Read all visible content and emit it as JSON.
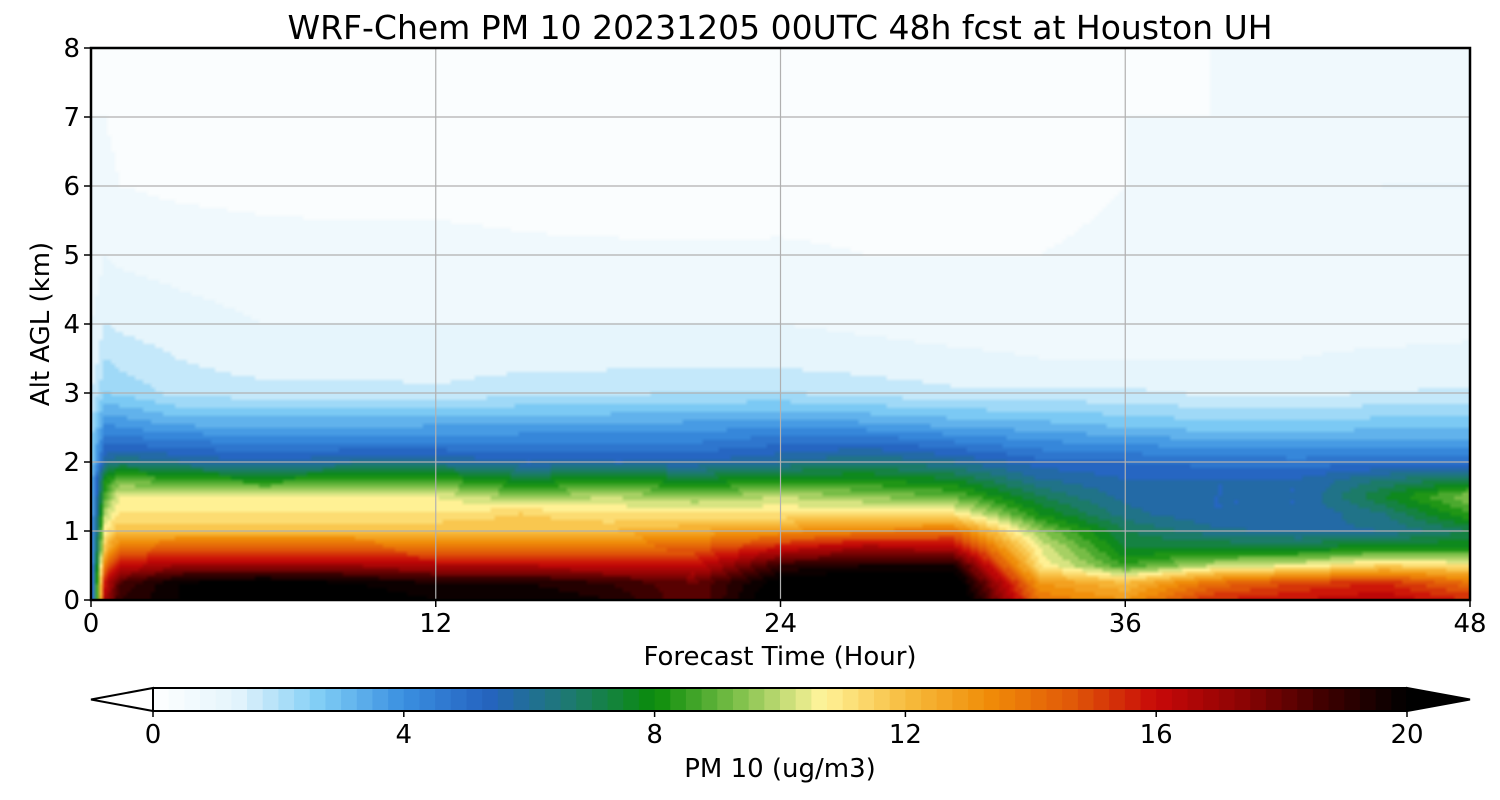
{
  "chart_data": {
    "type": "heatmap",
    "title": "WRF-Chem PM 10  20231205 00UTC 48h fcst at Houston UH",
    "xlabel": "Forecast Time (Hour)",
    "ylabel": "Alt AGL (km)",
    "xlim": [
      0,
      48
    ],
    "ylim": [
      0,
      8
    ],
    "x_ticks": [
      "0",
      "12",
      "24",
      "36",
      "48"
    ],
    "y_ticks": [
      "0",
      "1",
      "2",
      "3",
      "4",
      "5",
      "6",
      "7",
      "8"
    ],
    "grid": true,
    "colorbar": {
      "label": "PM 10  (ug/m3)",
      "range": [
        0,
        20
      ],
      "ticks": [
        "0",
        "4",
        "8",
        "12",
        "16",
        "20"
      ],
      "extend": "both",
      "colors": [
        "#ffffff",
        "#e4f4fc",
        "#7fcdf5",
        "#3a8fe0",
        "#2563c0",
        "#1d7a6e",
        "#0a8c0a",
        "#7ec04a",
        "#fff49a",
        "#f7bc3e",
        "#f08c08",
        "#e05808",
        "#c80808",
        "#8e0404",
        "#400000",
        "#000000"
      ]
    },
    "x": [
      0,
      0.5,
      1,
      3,
      6,
      9,
      12,
      15,
      18,
      21,
      24,
      27,
      30,
      33,
      36,
      39,
      42,
      45,
      48
    ],
    "y": [
      0,
      0.25,
      0.5,
      0.75,
      1,
      1.25,
      1.5,
      1.75,
      2,
      2.25,
      2.5,
      3,
      3.5,
      4,
      5,
      6,
      7,
      8
    ],
    "z": [
      [
        3,
        17,
        19,
        20,
        20.5,
        20.5,
        20,
        20,
        19.5,
        18,
        21,
        21.5,
        21.5,
        14,
        13,
        15.5,
        16,
        16.5,
        15.5
      ],
      [
        3,
        16,
        18.5,
        20,
        20.5,
        20,
        19.5,
        19.5,
        19,
        18,
        20.5,
        21,
        21,
        13,
        12,
        14,
        15,
        15.5,
        14
      ],
      [
        3,
        14,
        16,
        17,
        17,
        17,
        16.5,
        16.5,
        16,
        16,
        19,
        19.5,
        19.5,
        11,
        8.5,
        10,
        10.5,
        11.5,
        11
      ],
      [
        3,
        12,
        14,
        14.5,
        14.5,
        14.5,
        14,
        14,
        14,
        14.5,
        16,
        17,
        16.5,
        10.5,
        7.5,
        7.5,
        7.5,
        8,
        8
      ],
      [
        3,
        11,
        12,
        12,
        12,
        12,
        12,
        12,
        12,
        12.5,
        13,
        13.5,
        14,
        9.5,
        7,
        6.2,
        5.8,
        6,
        7
      ],
      [
        3,
        10,
        11,
        11,
        11,
        11,
        11,
        11.5,
        11,
        11,
        11,
        11,
        11,
        8,
        6.2,
        5.5,
        5.5,
        6.5,
        8.5
      ],
      [
        3,
        9,
        10.5,
        10.5,
        10.5,
        10.5,
        10.5,
        9.5,
        10,
        9.5,
        10,
        9.5,
        9,
        7,
        5.8,
        5.5,
        5.5,
        7.5,
        9.5
      ],
      [
        3,
        8,
        9,
        8.5,
        8,
        8.5,
        8.5,
        7.5,
        8,
        7.5,
        8,
        8,
        7.5,
        6,
        5.5,
        5.5,
        5.5,
        6.5,
        7
      ],
      [
        2.5,
        6,
        6.5,
        6,
        5.5,
        6,
        6,
        5.5,
        5.5,
        5.5,
        6,
        6.5,
        6,
        5.2,
        5,
        4.8,
        4.7,
        4.8,
        4.8
      ],
      [
        2.5,
        5,
        5,
        4.8,
        4.5,
        4.6,
        4.6,
        4.5,
        4.5,
        4.6,
        5,
        5.2,
        4.7,
        4.2,
        4,
        3.8,
        3.8,
        3.8,
        3.8
      ],
      [
        2,
        4.2,
        4,
        3.6,
        3.5,
        3.5,
        3.6,
        3.7,
        3.7,
        3.8,
        4,
        3.8,
        3.5,
        3.3,
        3,
        2.8,
        2.8,
        2.9,
        3
      ],
      [
        1.5,
        2.5,
        2.4,
        1.8,
        1.7,
        1.7,
        1.6,
        1.8,
        1.9,
        2,
        2,
        1.8,
        1.6,
        1.6,
        1.6,
        1.4,
        1.4,
        1.5,
        1.6
      ],
      [
        1,
        2,
        1.8,
        1.5,
        1.2,
        1.2,
        1.2,
        1.3,
        1.3,
        1.3,
        1.3,
        1.2,
        1.1,
        1,
        1,
        1,
        1,
        1.1,
        1.1
      ],
      [
        1,
        1.5,
        1.4,
        1.2,
        1,
        1,
        1,
        1,
        1,
        1,
        1,
        0.9,
        0.8,
        0.8,
        0.8,
        0.8,
        0.8,
        0.8,
        0.9
      ],
      [
        0.5,
        1,
        0.9,
        0.8,
        0.7,
        0.7,
        0.7,
        0.6,
        0.6,
        0.6,
        0.6,
        0.5,
        0.5,
        0.5,
        0.6,
        0.6,
        0.7,
        0.8,
        0.9
      ],
      [
        0.5,
        0.6,
        0.5,
        0.4,
        0.35,
        0.3,
        0.3,
        0.3,
        0.2,
        0.15,
        0.2,
        0.25,
        0.3,
        0.35,
        0.5,
        0.6,
        0.8,
        1,
        1
      ],
      [
        0.5,
        0.5,
        0.4,
        0.3,
        0.3,
        0.3,
        0.3,
        0.3,
        0.3,
        0.2,
        0.2,
        0.3,
        0.4,
        0.4,
        0.5,
        0.5,
        0.7,
        0.8,
        0.8
      ],
      [
        0.5,
        0.4,
        0.4,
        0.3,
        0.3,
        0.3,
        0.3,
        0.3,
        0.3,
        0.3,
        0.3,
        0.3,
        0.4,
        0.4,
        0.4,
        0.5,
        0.6,
        0.6,
        0.6
      ]
    ]
  }
}
